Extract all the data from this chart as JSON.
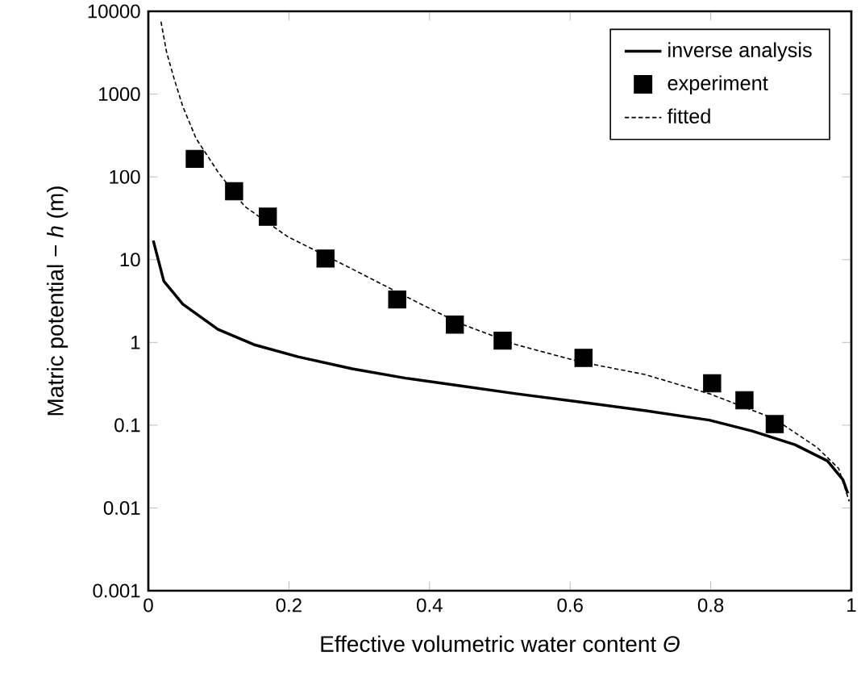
{
  "chart_data": {
    "type": "line",
    "xlabel": "Effective volumetric water content *Θ*",
    "ylabel": "Matric potential − *h* (m)",
    "xlim": [
      0,
      1
    ],
    "xticks": [
      0,
      0.2,
      0.4,
      0.6,
      0.8,
      1
    ],
    "ylim": [
      0.001,
      10000
    ],
    "yticks": [
      0.001,
      0.01,
      0.1,
      1,
      10,
      100,
      1000,
      10000
    ],
    "log": "y",
    "grid": false,
    "legend": "top right",
    "series": [
      {
        "name": "inverse analysis",
        "color": "#000000",
        "marker": "none",
        "line_style": "solid",
        "x": [
          0.007,
          0.022,
          0.049,
          0.099,
          0.152,
          0.213,
          0.29,
          0.366,
          0.443,
          0.523,
          0.615,
          0.706,
          0.798,
          0.859,
          0.92,
          0.966,
          0.988,
          0.995
        ],
        "values": [
          17,
          5.5,
          2.9,
          1.44,
          0.93,
          0.67,
          0.48,
          0.37,
          0.3,
          0.24,
          0.19,
          0.15,
          0.115,
          0.085,
          0.058,
          0.037,
          0.022,
          0.015
        ]
      },
      {
        "name": "experiment",
        "type": "scatter",
        "color": "#000000",
        "marker": "square",
        "x": [
          0.066,
          0.122,
          0.17,
          0.252,
          0.354,
          0.436,
          0.504,
          0.619,
          0.802,
          0.848,
          0.891
        ],
        "values": [
          165,
          67,
          33,
          10.3,
          3.3,
          1.64,
          1.05,
          0.65,
          0.32,
          0.2,
          0.103
        ]
      },
      {
        "name": "fitted",
        "color": "#000000",
        "marker": "none",
        "line_style": "dashed",
        "x": [
          0.018,
          0.026,
          0.037,
          0.049,
          0.068,
          0.099,
          0.137,
          0.198,
          0.29,
          0.381,
          0.443,
          0.523,
          0.615,
          0.706,
          0.798,
          0.89,
          0.951,
          0.982,
          0.997
        ],
        "values": [
          7500,
          3200,
          1500,
          710,
          290,
          115,
          44,
          19,
          7.7,
          3.1,
          1.7,
          0.94,
          0.58,
          0.41,
          0.24,
          0.12,
          0.054,
          0.03,
          0.012
        ]
      }
    ]
  }
}
